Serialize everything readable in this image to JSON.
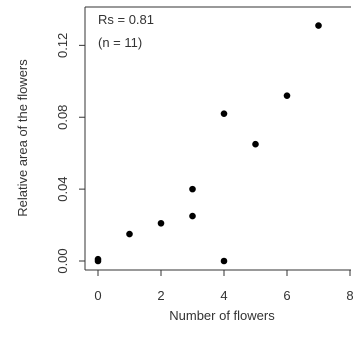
{
  "chart_data": {
    "type": "scatter",
    "title": "",
    "xlabel": "Number of flowers",
    "ylabel": "Relative area of the flowers",
    "xlim": [
      0,
      8
    ],
    "ylim": [
      0,
      0.13
    ],
    "x_ticks": [
      0,
      2,
      4,
      6,
      8
    ],
    "y_ticks": [
      "0.00",
      "0.04",
      "0.08",
      "0.12"
    ],
    "annotations": [
      "Rs = 0.81",
      "(n = 11)"
    ],
    "grid": false,
    "points": [
      {
        "x": 0,
        "y": 0.0
      },
      {
        "x": 0,
        "y": 0.001
      },
      {
        "x": 1,
        "y": 0.015
      },
      {
        "x": 2,
        "y": 0.021
      },
      {
        "x": 3,
        "y": 0.025
      },
      {
        "x": 3,
        "y": 0.04
      },
      {
        "x": 4,
        "y": 0.0
      },
      {
        "x": 4,
        "y": 0.082
      },
      {
        "x": 5,
        "y": 0.065
      },
      {
        "x": 6,
        "y": 0.092
      },
      {
        "x": 7,
        "y": 0.131
      }
    ],
    "point_color": "#000000"
  }
}
